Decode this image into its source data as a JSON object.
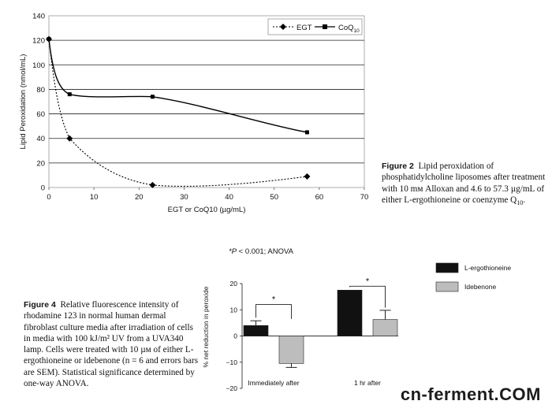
{
  "figure2": {
    "label": "Figure 2",
    "caption_text": "Lipid peroxidation of phosphatidylcholine liposomes after treatment with 10 mм Alloxan and 4.6 to 57.3 µg/mL of either L-ergothioneine or coenzyme Q",
    "caption_sub": "10",
    "caption_end": "."
  },
  "figure4": {
    "label": "Figure 4",
    "caption_text": "Relative fluorescence intensity of rhodamine 123 in normal human dermal fibroblast culture media after irradiation of cells in media with 100 kJ/m² UV from a UVA340 lamp. Cells were treated with 10 µм of either L-ergothioneine or idebenone (n = 6 and errors bars are SEM). Statistical significance determined by one-way ANOVA."
  },
  "watermark": "cn-ferment.COM",
  "chart_data": [
    {
      "type": "line",
      "title": "",
      "xlabel": "EGT or CoQ10 (µg/mL)",
      "ylabel": "Lipid Peroxidation (nmol/mL)",
      "xlim": [
        0,
        70
      ],
      "ylim": [
        0,
        140
      ],
      "xticks": [
        "0",
        "10",
        "20",
        "30",
        "40",
        "50",
        "60",
        "70"
      ],
      "yticks": [
        "0",
        "20",
        "40",
        "60",
        "80",
        "100",
        "120",
        "140"
      ],
      "grid": true,
      "legend": "top-right",
      "series": [
        {
          "name": "EGT",
          "style": "dashed",
          "marker": "diamond",
          "color": "#000000",
          "x": [
            0,
            4.6,
            23,
            57.3
          ],
          "y": [
            121,
            40,
            2,
            9
          ]
        },
        {
          "name": "CoQ10",
          "legend_main": "CoQ",
          "legend_sub": "10",
          "style": "solid",
          "marker": "square",
          "color": "#000000",
          "x": [
            0,
            4.6,
            23,
            57.3
          ],
          "y": [
            121,
            76,
            74,
            45
          ]
        }
      ]
    },
    {
      "type": "bar",
      "title": "",
      "annotation": "*P < 0.001; ANOVA",
      "annotation_italic": "*P",
      "annotation_rest": " < 0.001; ANOVA",
      "ylabel": "% net reduction in peroxide",
      "ylim": [
        -20,
        20
      ],
      "yticks": [
        "20",
        "10",
        "0",
        "−10",
        "−20"
      ],
      "categories": [
        "Immediately after",
        "1 hr after"
      ],
      "legend": "right",
      "significance": [
        "*",
        "*"
      ],
      "series": [
        {
          "name": "L-ergothioneine",
          "color": "#111111",
          "values": [
            4,
            17.5
          ],
          "errors": [
            1.8,
            0
          ]
        },
        {
          "name": "Idebenone",
          "color": "#bdbdbd",
          "values": [
            -10.5,
            6.3
          ],
          "errors": [
            1.5,
            3.5
          ]
        }
      ]
    }
  ]
}
